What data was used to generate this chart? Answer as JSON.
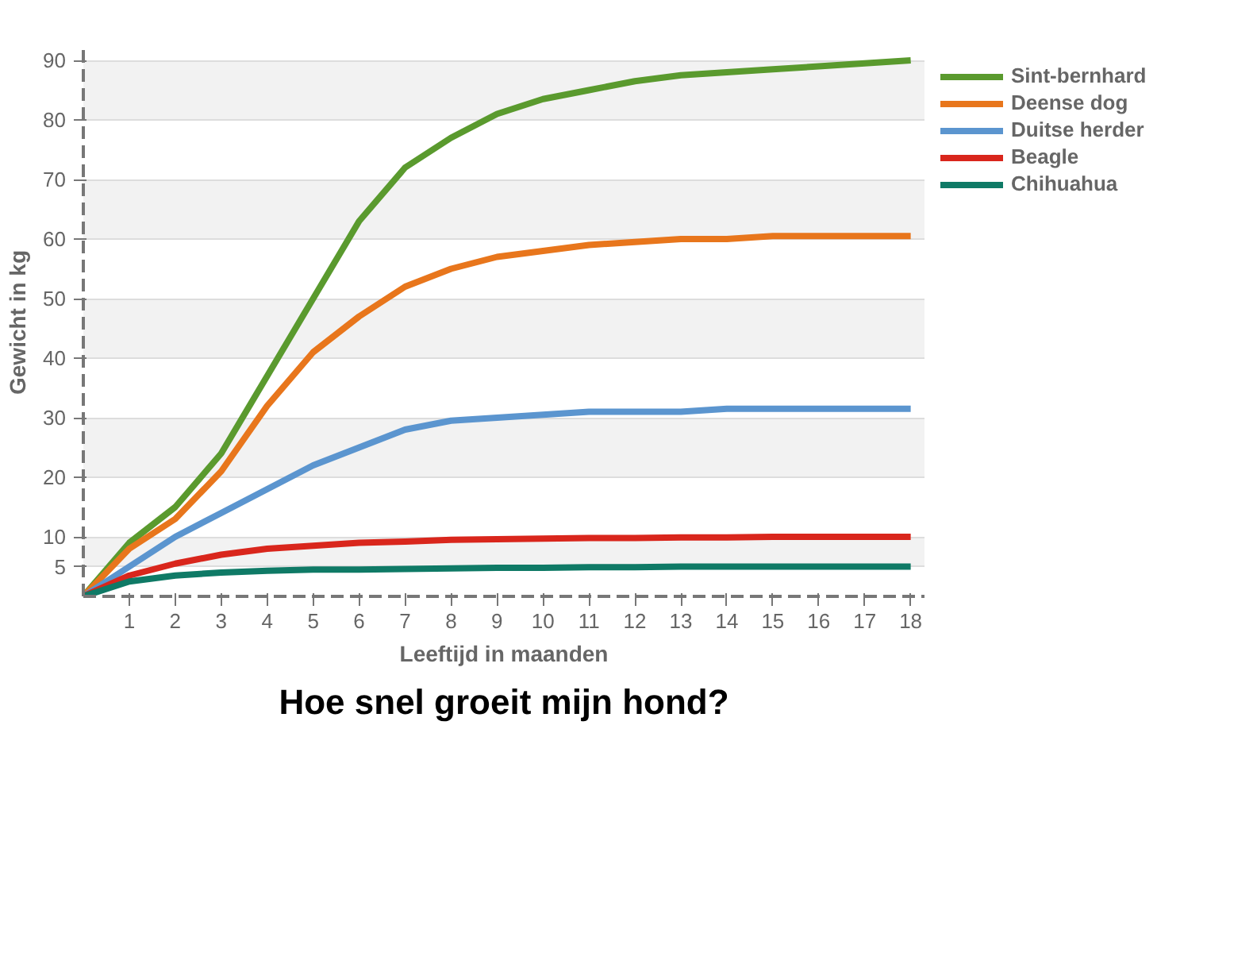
{
  "chart_data": {
    "type": "line",
    "title": "Hoe snel groeit mijn hond?",
    "xlabel": "Leeftijd in maanden",
    "ylabel": "Gewicht in kg",
    "x": [
      0,
      1,
      2,
      3,
      4,
      5,
      6,
      7,
      8,
      9,
      10,
      11,
      12,
      13,
      14,
      15,
      16,
      17,
      18
    ],
    "xlim": [
      0,
      18.3
    ],
    "xticks": [
      1,
      2,
      3,
      4,
      5,
      6,
      7,
      8,
      9,
      10,
      11,
      12,
      13,
      14,
      15,
      16,
      17,
      18
    ],
    "ylim": [
      0,
      92
    ],
    "yticks": [
      5,
      10,
      20,
      30,
      40,
      50,
      60,
      70,
      80,
      90
    ],
    "grid": "y",
    "legend": "top right",
    "marker": "none",
    "line_style": "solid",
    "series": [
      {
        "name": "Sint-bernhard",
        "color": "#5a9a2e",
        "values": [
          0,
          9,
          15,
          24,
          37,
          50,
          63,
          72,
          77,
          81,
          83.5,
          85,
          86.5,
          87.5,
          88,
          88.5,
          89,
          89.5,
          90
        ]
      },
      {
        "name": "Deense dog",
        "color": "#e8761c",
        "values": [
          0,
          8,
          13,
          21,
          32,
          41,
          47,
          52,
          55,
          57,
          58,
          59,
          59.5,
          60,
          60,
          60.5,
          60.5,
          60.5,
          60.5
        ]
      },
      {
        "name": "Duitse herder",
        "color": "#5b95cf",
        "values": [
          0,
          5,
          10,
          14,
          18,
          22,
          25,
          28,
          29.5,
          30,
          30.5,
          31,
          31,
          31,
          31.5,
          31.5,
          31.5,
          31.5,
          31.5
        ]
      },
      {
        "name": "Beagle",
        "color": "#d9261c",
        "values": [
          0,
          3.5,
          5.5,
          7,
          8,
          8.5,
          9,
          9.2,
          9.5,
          9.6,
          9.7,
          9.8,
          9.8,
          9.9,
          9.9,
          10,
          10,
          10,
          10
        ]
      },
      {
        "name": "Chihuahua",
        "color": "#0f7a66",
        "values": [
          0,
          2.5,
          3.5,
          4,
          4.3,
          4.5,
          4.5,
          4.6,
          4.7,
          4.8,
          4.8,
          4.9,
          4.9,
          5,
          5,
          5,
          5,
          5,
          5
        ]
      }
    ]
  }
}
